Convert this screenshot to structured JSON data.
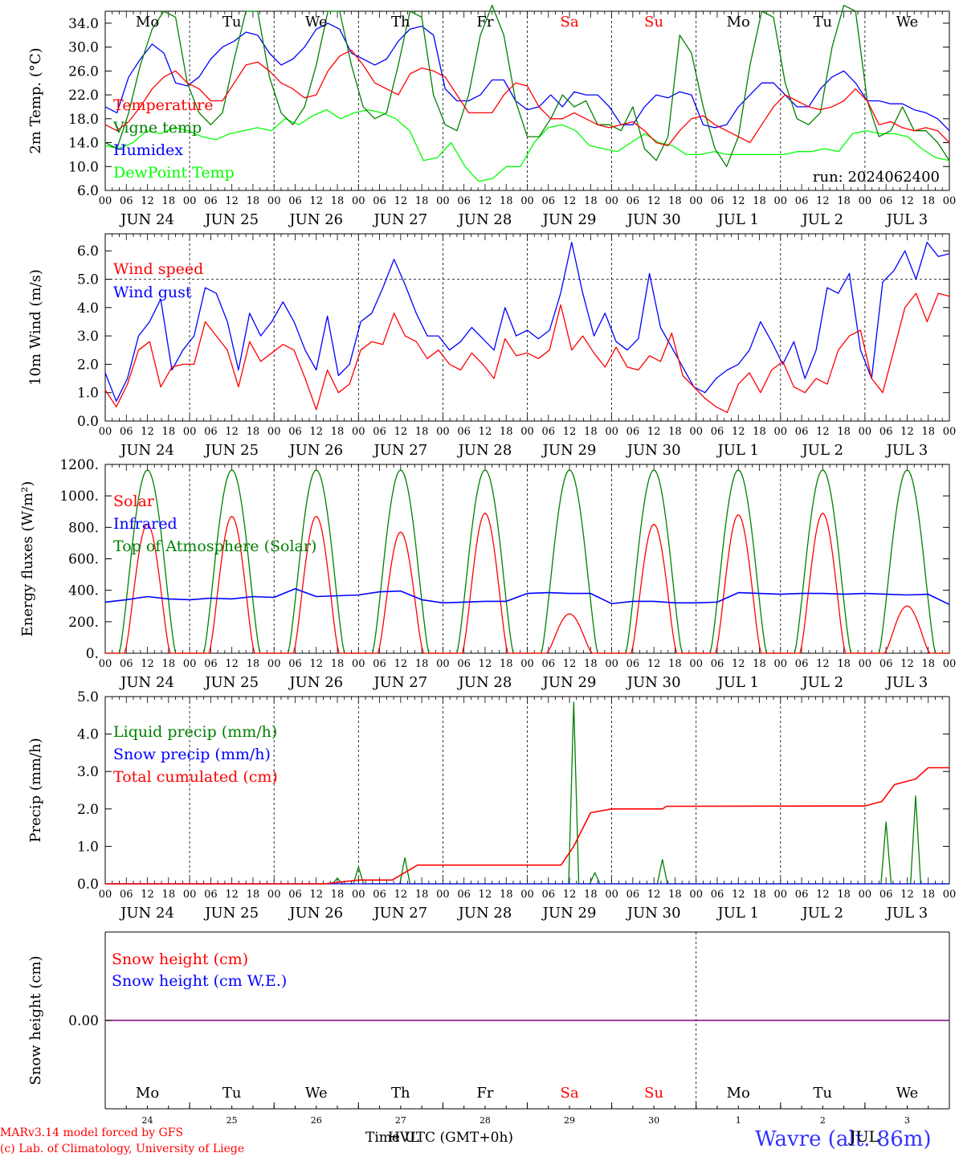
{
  "chart_data": [
    {
      "type": "line",
      "ylabel": "2m Temp. (°C)",
      "ylim": [
        6,
        36
      ],
      "y_ticks": [
        "6.0",
        "10.0",
        "14.0",
        "18.0",
        "22.0",
        "26.0",
        "30.0",
        "34.0"
      ],
      "weekdays": [
        "Mo",
        "Tu",
        "We",
        "Th",
        "Fr",
        "Sa",
        "Su",
        "Mo",
        "Tu",
        "We"
      ],
      "weekend_days": [
        "Sa",
        "Su"
      ],
      "hour_labels": [
        "00",
        "06",
        "12",
        "18"
      ],
      "date_labels": [
        "JUN 24",
        "JUN 25",
        "JUN 26",
        "JUN 27",
        "JUN 28",
        "JUN 29",
        "JUN 30",
        "JUL  1",
        "JUL  2",
        "JUL  3"
      ],
      "run_label": "run: 2024062400",
      "legend_placement": "left",
      "series": [
        {
          "name": "Temperature",
          "color": "#ff0000",
          "values": [
            17,
            16,
            17.5,
            20,
            23,
            25,
            26,
            24,
            23,
            21,
            21,
            24,
            27,
            27.5,
            26,
            24,
            23,
            21.5,
            22,
            26,
            28.5,
            29.5,
            27,
            24,
            23,
            22,
            25.5,
            26.5,
            26,
            25,
            22,
            19,
            19,
            19,
            22,
            24,
            23.5,
            20,
            18,
            18,
            19,
            18,
            17,
            16.5,
            17,
            17.5,
            16,
            14,
            13.5,
            16,
            18,
            18.5,
            17,
            16,
            15,
            14,
            17,
            20,
            22,
            21,
            20,
            19.5,
            20,
            21,
            23,
            21,
            17,
            17.5,
            16.5,
            16,
            16.5,
            16,
            14
          ]
        },
        {
          "name": "Vigne temp",
          "color": "#008000",
          "values": [
            14,
            13,
            19,
            27,
            33,
            36,
            35,
            24,
            19,
            17,
            19,
            28,
            36,
            36,
            25,
            19,
            17,
            20,
            27,
            36,
            36,
            27,
            20,
            18,
            19,
            27,
            36,
            35,
            22,
            17,
            16,
            22,
            32,
            37,
            32,
            21,
            15,
            15,
            18,
            22,
            20,
            21,
            17,
            17,
            16,
            20,
            13,
            11,
            15,
            32,
            29,
            20,
            13,
            10,
            15,
            27,
            36,
            35,
            24,
            18,
            17,
            19,
            30,
            37,
            36,
            21,
            15,
            16,
            20,
            16,
            16,
            14,
            11
          ]
        },
        {
          "name": "Humidex",
          "color": "#0000ff",
          "values": [
            20,
            19,
            25,
            28,
            30.5,
            29,
            24,
            23.5,
            25,
            28,
            30,
            31,
            32.5,
            32,
            29,
            27,
            28,
            30,
            33,
            34,
            33,
            29,
            28,
            27,
            28,
            31,
            33,
            33.5,
            32,
            23,
            21,
            21,
            22,
            24.5,
            24.5,
            21,
            19.5,
            20,
            22,
            20,
            22.5,
            22,
            22,
            20,
            17,
            17,
            20,
            22,
            21.5,
            22.5,
            22,
            17,
            16.5,
            17,
            20,
            22,
            24,
            24,
            22,
            20,
            20,
            23,
            25,
            26,
            24,
            21,
            21,
            20.5,
            20.5,
            19.5,
            19,
            18,
            16
          ]
        },
        {
          "name": "DewPoint Temp",
          "color": "#00ff00",
          "values": [
            13.5,
            13,
            14,
            16,
            15.5,
            16.5,
            16,
            15,
            14.5,
            15.5,
            16,
            16.5,
            16,
            18,
            17,
            18.5,
            19.5,
            18,
            19,
            19.5,
            19,
            18,
            16,
            11,
            11.5,
            14,
            10,
            7.5,
            8,
            10,
            10,
            14,
            16.5,
            17,
            16,
            13.5,
            13,
            12.5,
            14,
            15.5,
            14,
            13.5,
            12,
            12,
            12.5,
            12,
            12,
            12,
            12,
            12,
            12.5,
            12.5,
            13,
            12.5,
            15.5,
            16,
            15.5,
            15.5,
            15,
            13,
            11.5,
            11
          ]
        }
      ]
    },
    {
      "type": "line",
      "ylabel": "10m Wind (m/s)",
      "ylim": [
        0,
        6.6
      ],
      "y_ticks": [
        "0.0",
        "1.0",
        "2.0",
        "3.0",
        "4.0",
        "5.0",
        "6.0"
      ],
      "reference_line": 5.0,
      "hour_labels": [
        "00",
        "06",
        "12",
        "18"
      ],
      "date_labels": [
        "JUN 24",
        "JUN 25",
        "JUN 26",
        "JUN 27",
        "JUN 28",
        "JUN 29",
        "JUN 30",
        "JUL  1",
        "JUL  2",
        "JUL  3"
      ],
      "legend_placement": "left",
      "series": [
        {
          "name": "Wind speed",
          "color": "#ff0000",
          "values": [
            1.1,
            0.5,
            1.3,
            2.5,
            2.8,
            1.2,
            1.9,
            2.0,
            2.0,
            3.5,
            3.0,
            2.5,
            1.2,
            2.8,
            2.1,
            2.4,
            2.7,
            2.5,
            1.5,
            0.4,
            1.8,
            1.0,
            1.3,
            2.5,
            2.8,
            2.7,
            3.8,
            3.0,
            2.8,
            2.2,
            2.5,
            2.0,
            1.8,
            2.4,
            2.0,
            1.5,
            2.9,
            2.3,
            2.4,
            2.2,
            2.5,
            4.1,
            2.5,
            3.0,
            2.4,
            1.9,
            2.6,
            1.9,
            1.8,
            2.3,
            2.1,
            3.1,
            1.6,
            1.2,
            0.8,
            0.5,
            0.3,
            1.3,
            1.7,
            1.0,
            1.8,
            2.1,
            1.2,
            1.0,
            1.5,
            1.3,
            2.5,
            3.0,
            3.2,
            1.5,
            1.0,
            2.5,
            4.0,
            4.5,
            3.5,
            4.5,
            4.4
          ]
        },
        {
          "name": "Wind gust",
          "color": "#0000ff",
          "values": [
            1.7,
            0.7,
            1.5,
            3.0,
            3.5,
            4.3,
            1.8,
            2.5,
            3.0,
            4.7,
            4.5,
            3.5,
            1.8,
            3.8,
            3.0,
            3.5,
            4.2,
            3.5,
            2.5,
            1.8,
            3.7,
            1.6,
            2.0,
            3.5,
            3.8,
            4.7,
            5.7,
            4.8,
            3.8,
            3.0,
            3.0,
            2.5,
            2.8,
            3.3,
            2.9,
            2.5,
            4.0,
            3.0,
            3.2,
            2.9,
            3.2,
            4.5,
            6.3,
            4.5,
            3.0,
            3.8,
            2.8,
            2.5,
            2.9,
            5.2,
            3.3,
            2.6,
            1.9,
            1.2,
            1.0,
            1.5,
            1.8,
            2.0,
            2.5,
            3.5,
            2.8,
            2.0,
            2.8,
            1.5,
            2.5,
            4.7,
            4.5,
            5.2,
            2.5,
            1.5,
            4.9,
            5.3,
            6.0,
            5.0,
            6.3,
            5.8,
            5.9
          ]
        }
      ]
    },
    {
      "type": "line",
      "ylabel": "Energy fluxes (W/m²)",
      "ylim": [
        0,
        1200
      ],
      "y_ticks": [
        "0.",
        "200.",
        "400.",
        "600.",
        "800.",
        "1000.",
        "1200."
      ],
      "hour_labels": [
        "00",
        "06",
        "12",
        "18"
      ],
      "date_labels": [
        "JUN 24",
        "JUN 25",
        "JUN 26",
        "JUN 27",
        "JUN 28",
        "JUN 29",
        "JUN 30",
        "JUL  1",
        "JUL  2",
        "JUL  3"
      ],
      "legend_placement": "left",
      "series": [
        {
          "name": "Solar",
          "color": "#ff0000",
          "day_peaks": [
            820,
            870,
            870,
            770,
            890,
            250,
            820,
            880,
            890,
            300
          ]
        },
        {
          "name": "Infrared",
          "color": "#0000ff",
          "values": [
            325,
            340,
            360,
            345,
            340,
            350,
            345,
            360,
            355,
            410,
            360,
            365,
            370,
            390,
            395,
            340,
            320,
            325,
            330,
            330,
            380,
            385,
            380,
            380,
            315,
            330,
            330,
            320,
            320,
            325,
            385,
            380,
            375,
            380,
            380,
            375,
            380,
            375,
            370,
            375,
            310
          ]
        },
        {
          "name": "Top of Atmosphere (Solar)",
          "color": "#008000",
          "day_peak": 1165
        }
      ]
    },
    {
      "type": "line",
      "ylabel": "Precip (mm/h)",
      "ylim": [
        0,
        5
      ],
      "y_ticks": [
        "0.0",
        "1.0",
        "2.0",
        "3.0",
        "4.0",
        "5.0"
      ],
      "hour_labels": [
        "00",
        "06",
        "12",
        "18"
      ],
      "date_labels": [
        "JUN 24",
        "JUN 25",
        "JUN 26",
        "JUN 27",
        "JUN 28",
        "JUN 29",
        "JUN 30",
        "JUL  1",
        "JUL  2",
        "JUL  3"
      ],
      "legend_placement": "top-left",
      "series": [
        {
          "name": "Liquid precip (mm/h)",
          "color": "#008000",
          "peaks": [
            [
              2.75,
              0.15
            ],
            [
              3.0,
              0.45
            ],
            [
              3.55,
              0.7
            ],
            [
              5.55,
              4.85
            ],
            [
              5.8,
              0.3
            ],
            [
              6.6,
              0.65
            ],
            [
              9.25,
              1.65
            ],
            [
              9.6,
              2.35
            ]
          ]
        },
        {
          "name": "Snow precip (mm/h)",
          "color": "#0000ff",
          "values": [
            0
          ]
        },
        {
          "name": "Total cumulated (cm)",
          "color": "#ff0000",
          "values": [
            [
              0,
              0
            ],
            [
              2.6,
              0
            ],
            [
              3.0,
              0.1
            ],
            [
              3.4,
              0.1
            ],
            [
              3.7,
              0.5
            ],
            [
              5.4,
              0.5
            ],
            [
              5.55,
              1.0
            ],
            [
              5.75,
              1.9
            ],
            [
              6.0,
              2.0
            ],
            [
              6.6,
              2.0
            ],
            [
              6.65,
              2.07
            ],
            [
              9.0,
              2.08
            ],
            [
              9.2,
              2.2
            ],
            [
              9.35,
              2.65
            ],
            [
              9.6,
              2.8
            ],
            [
              9.75,
              3.1
            ],
            [
              10,
              3.1
            ]
          ]
        }
      ]
    },
    {
      "type": "line",
      "ylabel": "Snow height (cm)",
      "y_ticks": [
        "0.00"
      ],
      "day_numbers": [
        "24",
        "25",
        "26",
        "27",
        "28",
        "29",
        "30",
        "1",
        "2",
        "3"
      ],
      "weekdays": [
        "Mo",
        "Tu",
        "We",
        "Th",
        "Fr",
        "Sa",
        "Su",
        "Mo",
        "Tu",
        "We"
      ],
      "legend_placement": "top-left",
      "series": [
        {
          "name": "Snow height (cm)",
          "color": "#ff0000",
          "values": [
            0
          ]
        },
        {
          "name": "Snow height (cm W.E.)",
          "color": "#0000ff",
          "values": [
            0
          ]
        }
      ]
    }
  ],
  "footer": {
    "credit_line1": "MARv3.14 model forced by GFS",
    "credit_line2": "(c) Lab. of Climatology, University of Liege",
    "xlabel": "Time UTC (GMT+0h)",
    "overlap_text": "HVL",
    "station": "Wavre (alt. 86m)",
    "station_overlap": "JUL"
  }
}
